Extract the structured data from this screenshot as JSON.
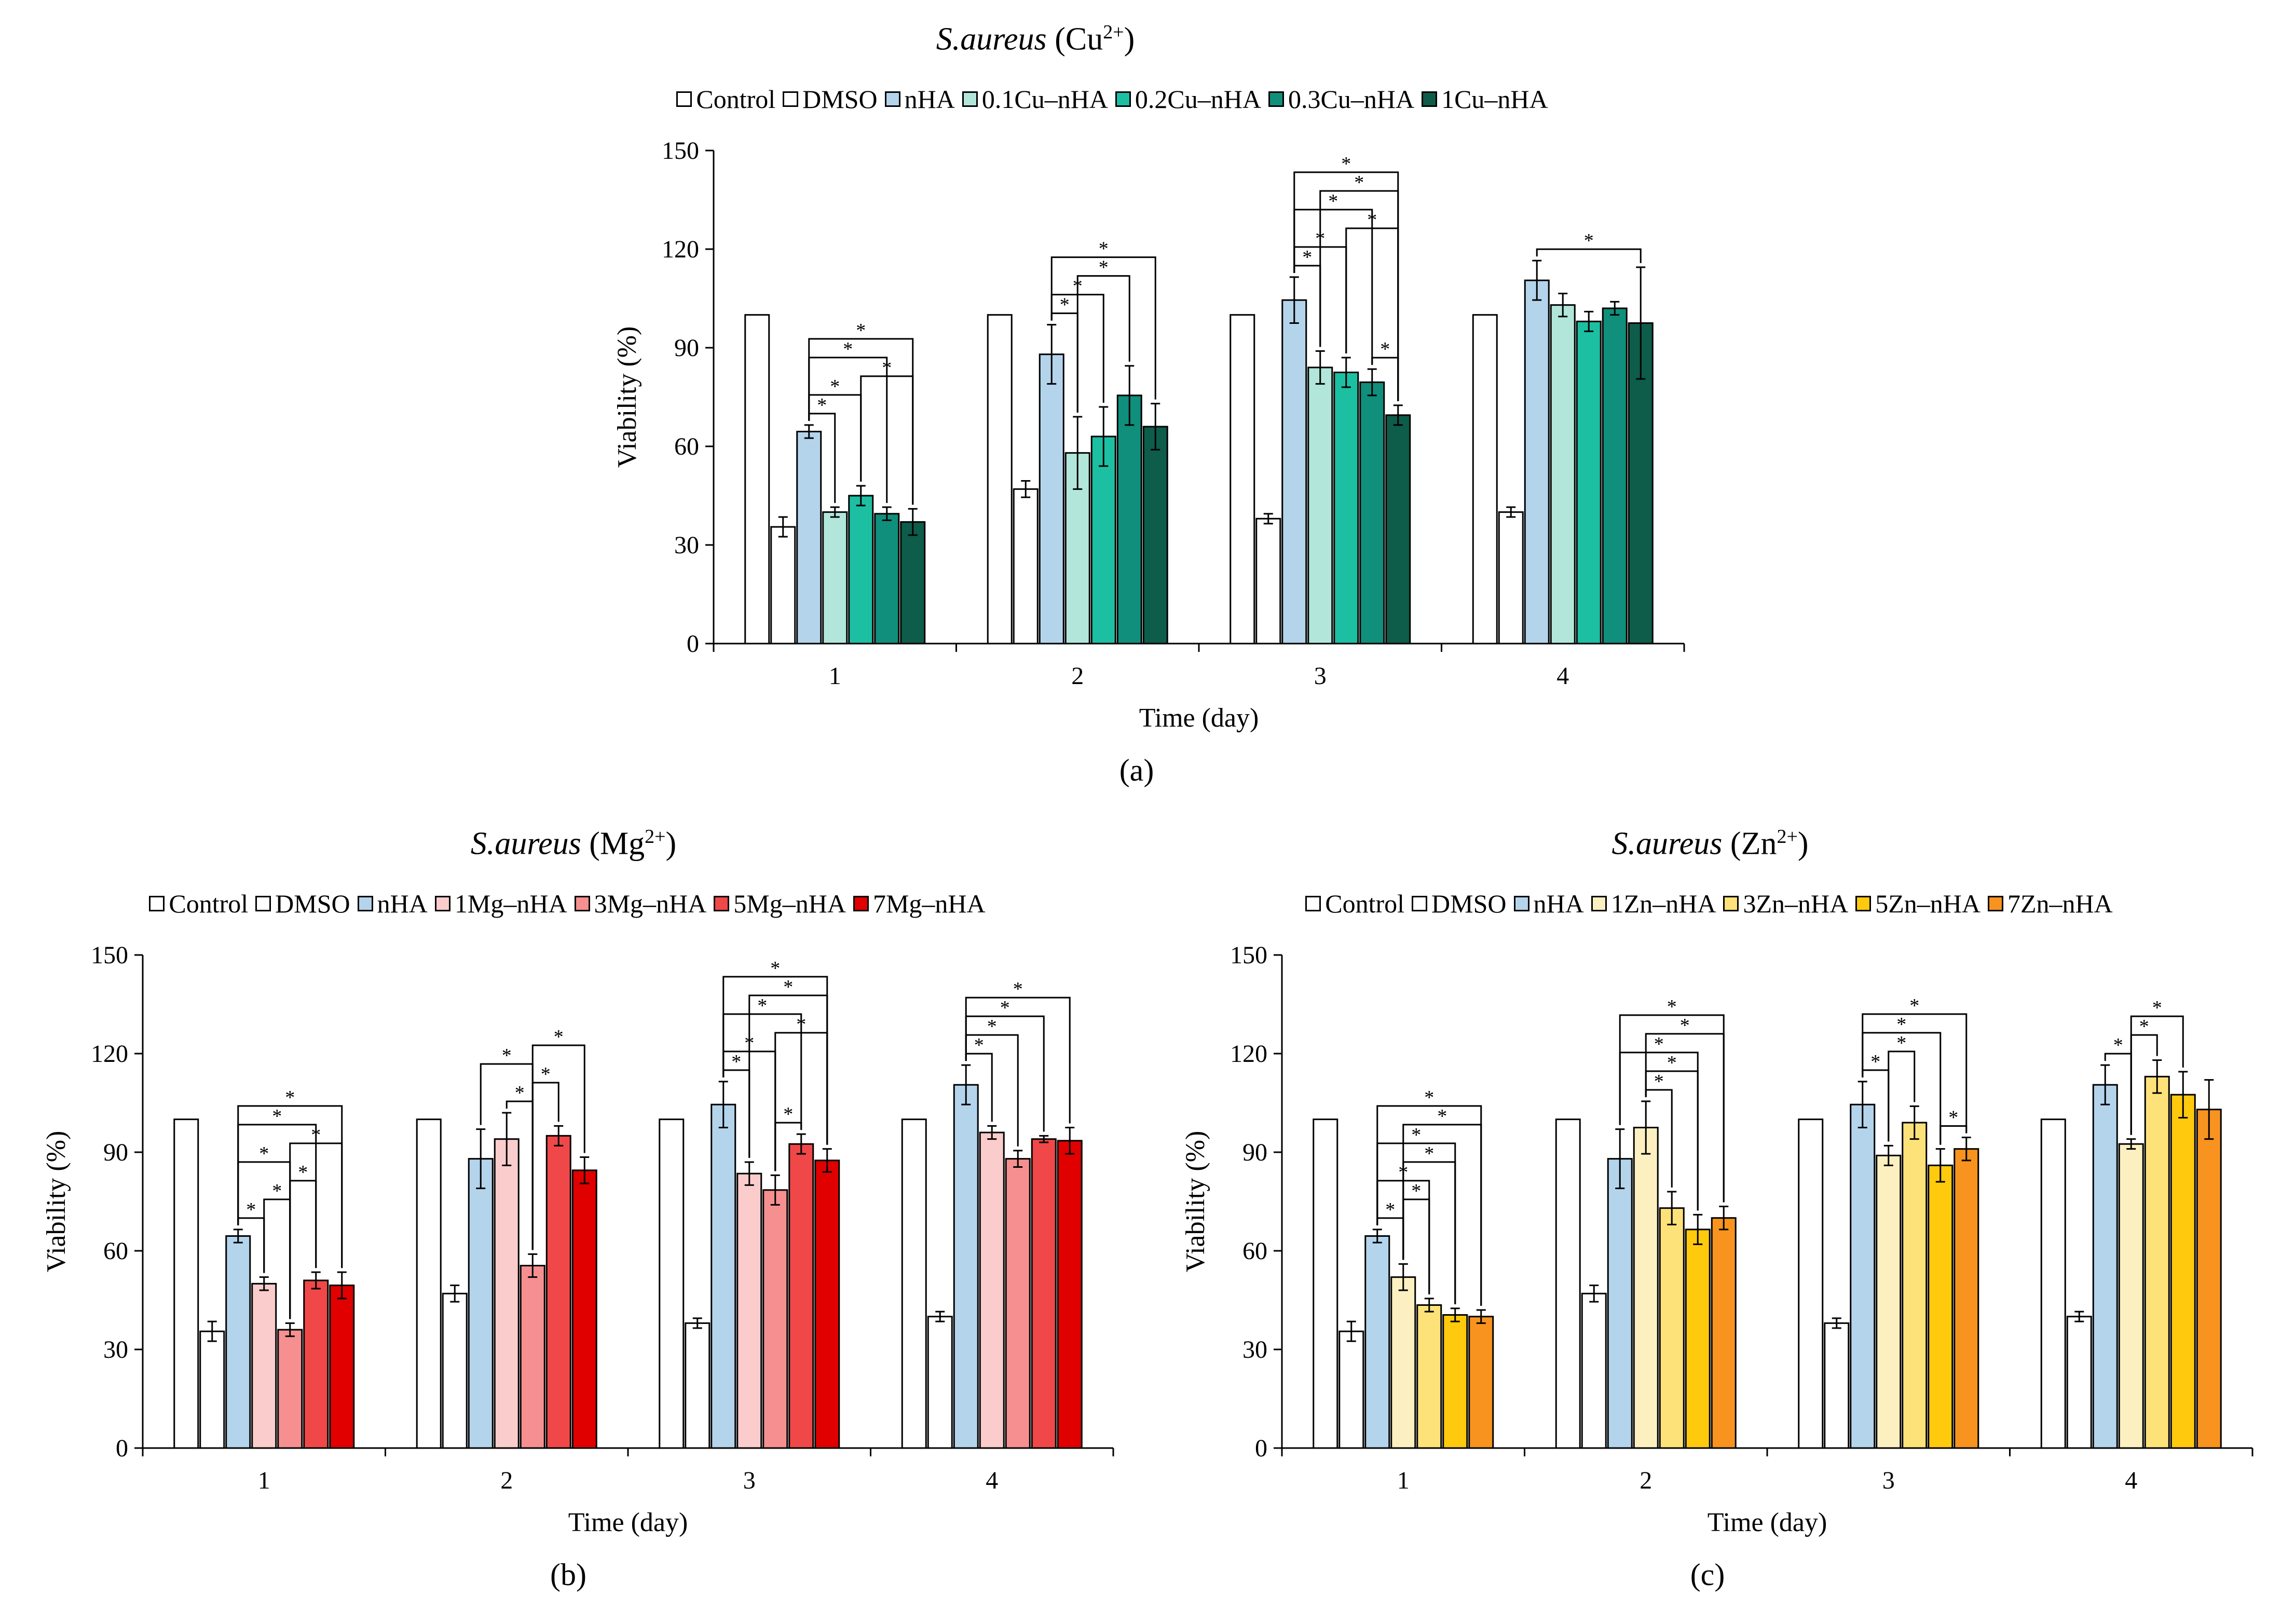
{
  "panels": [
    {
      "id": "a",
      "tag": "(a)",
      "title_organism": "S.aureus",
      "title_ion": "Cu",
      "title_charge": "2+",
      "legend": [
        "Control",
        "DMSO",
        "nHA",
        "0.1Cu–nHA",
        "0.2Cu–nHA",
        "0.3Cu–nHA",
        "1Cu–nHA"
      ],
      "colors": [
        "#ffffff",
        "#ffffff",
        "#b4d4ec",
        "#b2e6da",
        "#1dbfa3",
        "#0f8f7c",
        "#0e5c4a"
      ]
    },
    {
      "id": "b",
      "tag": "(b)",
      "title_organism": "S.aureus",
      "title_ion": "Mg",
      "title_charge": "2+",
      "legend": [
        "Control",
        "DMSO",
        "nHA",
        "1Mg–nHA",
        "3Mg–nHA",
        "5Mg–nHA",
        "7Mg–nHA"
      ],
      "colors": [
        "#ffffff",
        "#ffffff",
        "#b4d4ec",
        "#fbcccc",
        "#f69090",
        "#f04848",
        "#e00000"
      ]
    },
    {
      "id": "c",
      "tag": "(c)",
      "title_organism": "S.aureus",
      "title_ion": "Zn",
      "title_charge": "2+",
      "legend": [
        "Control",
        "DMSO",
        "nHA",
        "1Zn–nHA",
        "3Zn–nHA",
        "5Zn–nHA",
        "7Zn–nHA"
      ],
      "colors": [
        "#ffffff",
        "#ffffff",
        "#b4d4ec",
        "#fdf0c0",
        "#fde27a",
        "#ffc90e",
        "#f7931e"
      ]
    }
  ],
  "chart_data": [
    {
      "type": "bar",
      "title": "S.aureus (Cu2+)",
      "xlabel": "Time (day)",
      "ylabel": "Viability (%)",
      "ylim": [
        0,
        150
      ],
      "yticks": [
        0,
        30,
        60,
        90,
        120,
        150
      ],
      "categories": [
        "1",
        "2",
        "3",
        "4"
      ],
      "series": [
        {
          "name": "Control",
          "values": [
            100,
            100,
            100,
            100
          ],
          "errors": [
            0,
            0,
            0,
            0
          ]
        },
        {
          "name": "DMSO",
          "values": [
            35.5,
            47,
            38,
            40
          ],
          "errors": [
            3,
            2.5,
            1.5,
            1.5
          ]
        },
        {
          "name": "nHA",
          "values": [
            64.5,
            88,
            104.5,
            110.5
          ],
          "errors": [
            2,
            9,
            7,
            6
          ]
        },
        {
          "name": "0.1Cu–nHA",
          "values": [
            40,
            58,
            84,
            103
          ],
          "errors": [
            1.5,
            11,
            5,
            3.5
          ]
        },
        {
          "name": "0.2Cu–nHA",
          "values": [
            45,
            63,
            82.5,
            98
          ],
          "errors": [
            3,
            9,
            4.5,
            3
          ]
        },
        {
          "name": "0.3Cu–nHA",
          "values": [
            39.5,
            75.5,
            79.5,
            102
          ],
          "errors": [
            2,
            9,
            4,
            2
          ]
        },
        {
          "name": "1Cu–nHA",
          "values": [
            37,
            66,
            69.5,
            97.5
          ],
          "errors": [
            4,
            7,
            3,
            17
          ]
        }
      ],
      "significance": [
        {
          "cat": 0,
          "from": 2,
          "to": 3,
          "label": "*"
        },
        {
          "cat": 0,
          "from": 2,
          "to": 4,
          "label": "*"
        },
        {
          "cat": 0,
          "from": 2,
          "to": 5,
          "label": "*"
        },
        {
          "cat": 0,
          "from": 2,
          "to": 6,
          "label": "*"
        },
        {
          "cat": 0,
          "from": 4,
          "to": 6,
          "label": "*"
        },
        {
          "cat": 1,
          "from": 2,
          "to": 3,
          "label": "*"
        },
        {
          "cat": 1,
          "from": 2,
          "to": 4,
          "label": "*"
        },
        {
          "cat": 1,
          "from": 2,
          "to": 6,
          "label": "*"
        },
        {
          "cat": 1,
          "from": 3,
          "to": 5,
          "label": "*"
        },
        {
          "cat": 2,
          "from": 2,
          "to": 3,
          "label": "*"
        },
        {
          "cat": 2,
          "from": 2,
          "to": 4,
          "label": "*"
        },
        {
          "cat": 2,
          "from": 2,
          "to": 5,
          "label": "*"
        },
        {
          "cat": 2,
          "from": 2,
          "to": 6,
          "label": "*"
        },
        {
          "cat": 2,
          "from": 3,
          "to": 6,
          "label": "*"
        },
        {
          "cat": 2,
          "from": 4,
          "to": 6,
          "label": "*"
        },
        {
          "cat": 2,
          "from": 5,
          "to": 6,
          "label": "*"
        },
        {
          "cat": 3,
          "from": 2,
          "to": 6,
          "label": "*"
        }
      ]
    },
    {
      "type": "bar",
      "title": "S.aureus (Mg2+)",
      "xlabel": "Time (day)",
      "ylabel": "Viability (%)",
      "ylim": [
        0,
        150
      ],
      "yticks": [
        0,
        30,
        60,
        90,
        120,
        150
      ],
      "categories": [
        "1",
        "2",
        "3",
        "4"
      ],
      "series": [
        {
          "name": "Control",
          "values": [
            100,
            100,
            100,
            100
          ],
          "errors": [
            0,
            0,
            0,
            0
          ]
        },
        {
          "name": "DMSO",
          "values": [
            35.5,
            47,
            38,
            40
          ],
          "errors": [
            3,
            2.5,
            1.5,
            1.5
          ]
        },
        {
          "name": "nHA",
          "values": [
            64.5,
            88,
            104.5,
            110.5
          ],
          "errors": [
            2,
            9,
            7,
            6
          ]
        },
        {
          "name": "1Mg–nHA",
          "values": [
            50,
            94,
            83.5,
            96
          ],
          "errors": [
            2,
            8,
            3.5,
            2
          ]
        },
        {
          "name": "3Mg–nHA",
          "values": [
            36,
            55.5,
            78.5,
            88
          ],
          "errors": [
            2,
            3.5,
            4.5,
            2.5
          ]
        },
        {
          "name": "5Mg–nHA",
          "values": [
            51,
            95,
            92.5,
            94
          ],
          "errors": [
            2.5,
            3,
            3,
            1
          ]
        },
        {
          "name": "7Mg–nHA",
          "values": [
            49.5,
            84.5,
            87.5,
            93.5
          ],
          "errors": [
            4,
            4,
            3.5,
            4
          ]
        }
      ],
      "significance": [
        {
          "cat": 0,
          "from": 2,
          "to": 3,
          "label": "*"
        },
        {
          "cat": 0,
          "from": 2,
          "to": 4,
          "label": "*"
        },
        {
          "cat": 0,
          "from": 2,
          "to": 5,
          "label": "*"
        },
        {
          "cat": 0,
          "from": 2,
          "to": 6,
          "label": "*"
        },
        {
          "cat": 0,
          "from": 3,
          "to": 4,
          "label": "*"
        },
        {
          "cat": 0,
          "from": 4,
          "to": 5,
          "label": "*"
        },
        {
          "cat": 0,
          "from": 4,
          "to": 6,
          "label": "*"
        },
        {
          "cat": 1,
          "from": 2,
          "to": 4,
          "label": "*"
        },
        {
          "cat": 1,
          "from": 3,
          "to": 4,
          "label": "*"
        },
        {
          "cat": 1,
          "from": 4,
          "to": 5,
          "label": "*"
        },
        {
          "cat": 1,
          "from": 4,
          "to": 6,
          "label": "*"
        },
        {
          "cat": 2,
          "from": 2,
          "to": 3,
          "label": "*"
        },
        {
          "cat": 2,
          "from": 2,
          "to": 4,
          "label": "*"
        },
        {
          "cat": 2,
          "from": 2,
          "to": 5,
          "label": "*"
        },
        {
          "cat": 2,
          "from": 2,
          "to": 6,
          "label": "*"
        },
        {
          "cat": 2,
          "from": 3,
          "to": 6,
          "label": "*"
        },
        {
          "cat": 2,
          "from": 4,
          "to": 5,
          "label": "*"
        },
        {
          "cat": 2,
          "from": 4,
          "to": 6,
          "label": "*"
        },
        {
          "cat": 3,
          "from": 2,
          "to": 3,
          "label": "*"
        },
        {
          "cat": 3,
          "from": 2,
          "to": 4,
          "label": "*"
        },
        {
          "cat": 3,
          "from": 2,
          "to": 5,
          "label": "*"
        },
        {
          "cat": 3,
          "from": 2,
          "to": 6,
          "label": "*"
        }
      ]
    },
    {
      "type": "bar",
      "title": "S.aureus (Zn2+)",
      "xlabel": "Time (day)",
      "ylabel": "Viability (%)",
      "ylim": [
        0,
        150
      ],
      "yticks": [
        0,
        30,
        60,
        90,
        120,
        150
      ],
      "categories": [
        "1",
        "2",
        "3",
        "4"
      ],
      "series": [
        {
          "name": "Control",
          "values": [
            100,
            100,
            100,
            100
          ],
          "errors": [
            0,
            0,
            0,
            0
          ]
        },
        {
          "name": "DMSO",
          "values": [
            35.5,
            47,
            38,
            40
          ],
          "errors": [
            3,
            2.5,
            1.5,
            1.5
          ]
        },
        {
          "name": "nHA",
          "values": [
            64.5,
            88,
            104.5,
            110.5
          ],
          "errors": [
            2,
            9,
            7,
            6
          ]
        },
        {
          "name": "1Zn–nHA",
          "values": [
            52,
            97.5,
            89,
            92.5
          ],
          "errors": [
            4,
            8,
            3,
            1.5
          ]
        },
        {
          "name": "3Zn–nHA",
          "values": [
            43.5,
            73,
            99,
            113
          ],
          "errors": [
            2,
            5,
            5,
            5
          ]
        },
        {
          "name": "5Zn–nHA",
          "values": [
            40.5,
            66.5,
            86,
            107.5
          ],
          "errors": [
            2,
            4.5,
            5,
            7
          ]
        },
        {
          "name": "7Zn–nHA",
          "values": [
            40,
            70,
            91,
            103
          ],
          "errors": [
            2,
            3.5,
            3.5,
            9
          ]
        }
      ],
      "significance": [
        {
          "cat": 0,
          "from": 2,
          "to": 3,
          "label": "*"
        },
        {
          "cat": 0,
          "from": 2,
          "to": 4,
          "label": "*"
        },
        {
          "cat": 0,
          "from": 2,
          "to": 5,
          "label": "*"
        },
        {
          "cat": 0,
          "from": 2,
          "to": 6,
          "label": "*"
        },
        {
          "cat": 0,
          "from": 3,
          "to": 4,
          "label": "*"
        },
        {
          "cat": 0,
          "from": 3,
          "to": 5,
          "label": "*"
        },
        {
          "cat": 0,
          "from": 3,
          "to": 6,
          "label": "*"
        },
        {
          "cat": 1,
          "from": 3,
          "to": 4,
          "label": "*"
        },
        {
          "cat": 1,
          "from": 3,
          "to": 5,
          "label": "*"
        },
        {
          "cat": 1,
          "from": 3,
          "to": 6,
          "label": "*"
        },
        {
          "cat": 1,
          "from": 2,
          "to": 5,
          "label": "*"
        },
        {
          "cat": 1,
          "from": 2,
          "to": 6,
          "label": "*"
        },
        {
          "cat": 2,
          "from": 2,
          "to": 3,
          "label": "*"
        },
        {
          "cat": 2,
          "from": 2,
          "to": 5,
          "label": "*"
        },
        {
          "cat": 2,
          "from": 2,
          "to": 6,
          "label": "*"
        },
        {
          "cat": 2,
          "from": 3,
          "to": 4,
          "label": "*"
        },
        {
          "cat": 2,
          "from": 5,
          "to": 6,
          "label": "*"
        },
        {
          "cat": 3,
          "from": 2,
          "to": 3,
          "label": "*"
        },
        {
          "cat": 3,
          "from": 3,
          "to": 4,
          "label": "*"
        },
        {
          "cat": 3,
          "from": 3,
          "to": 5,
          "label": "*"
        }
      ]
    }
  ]
}
